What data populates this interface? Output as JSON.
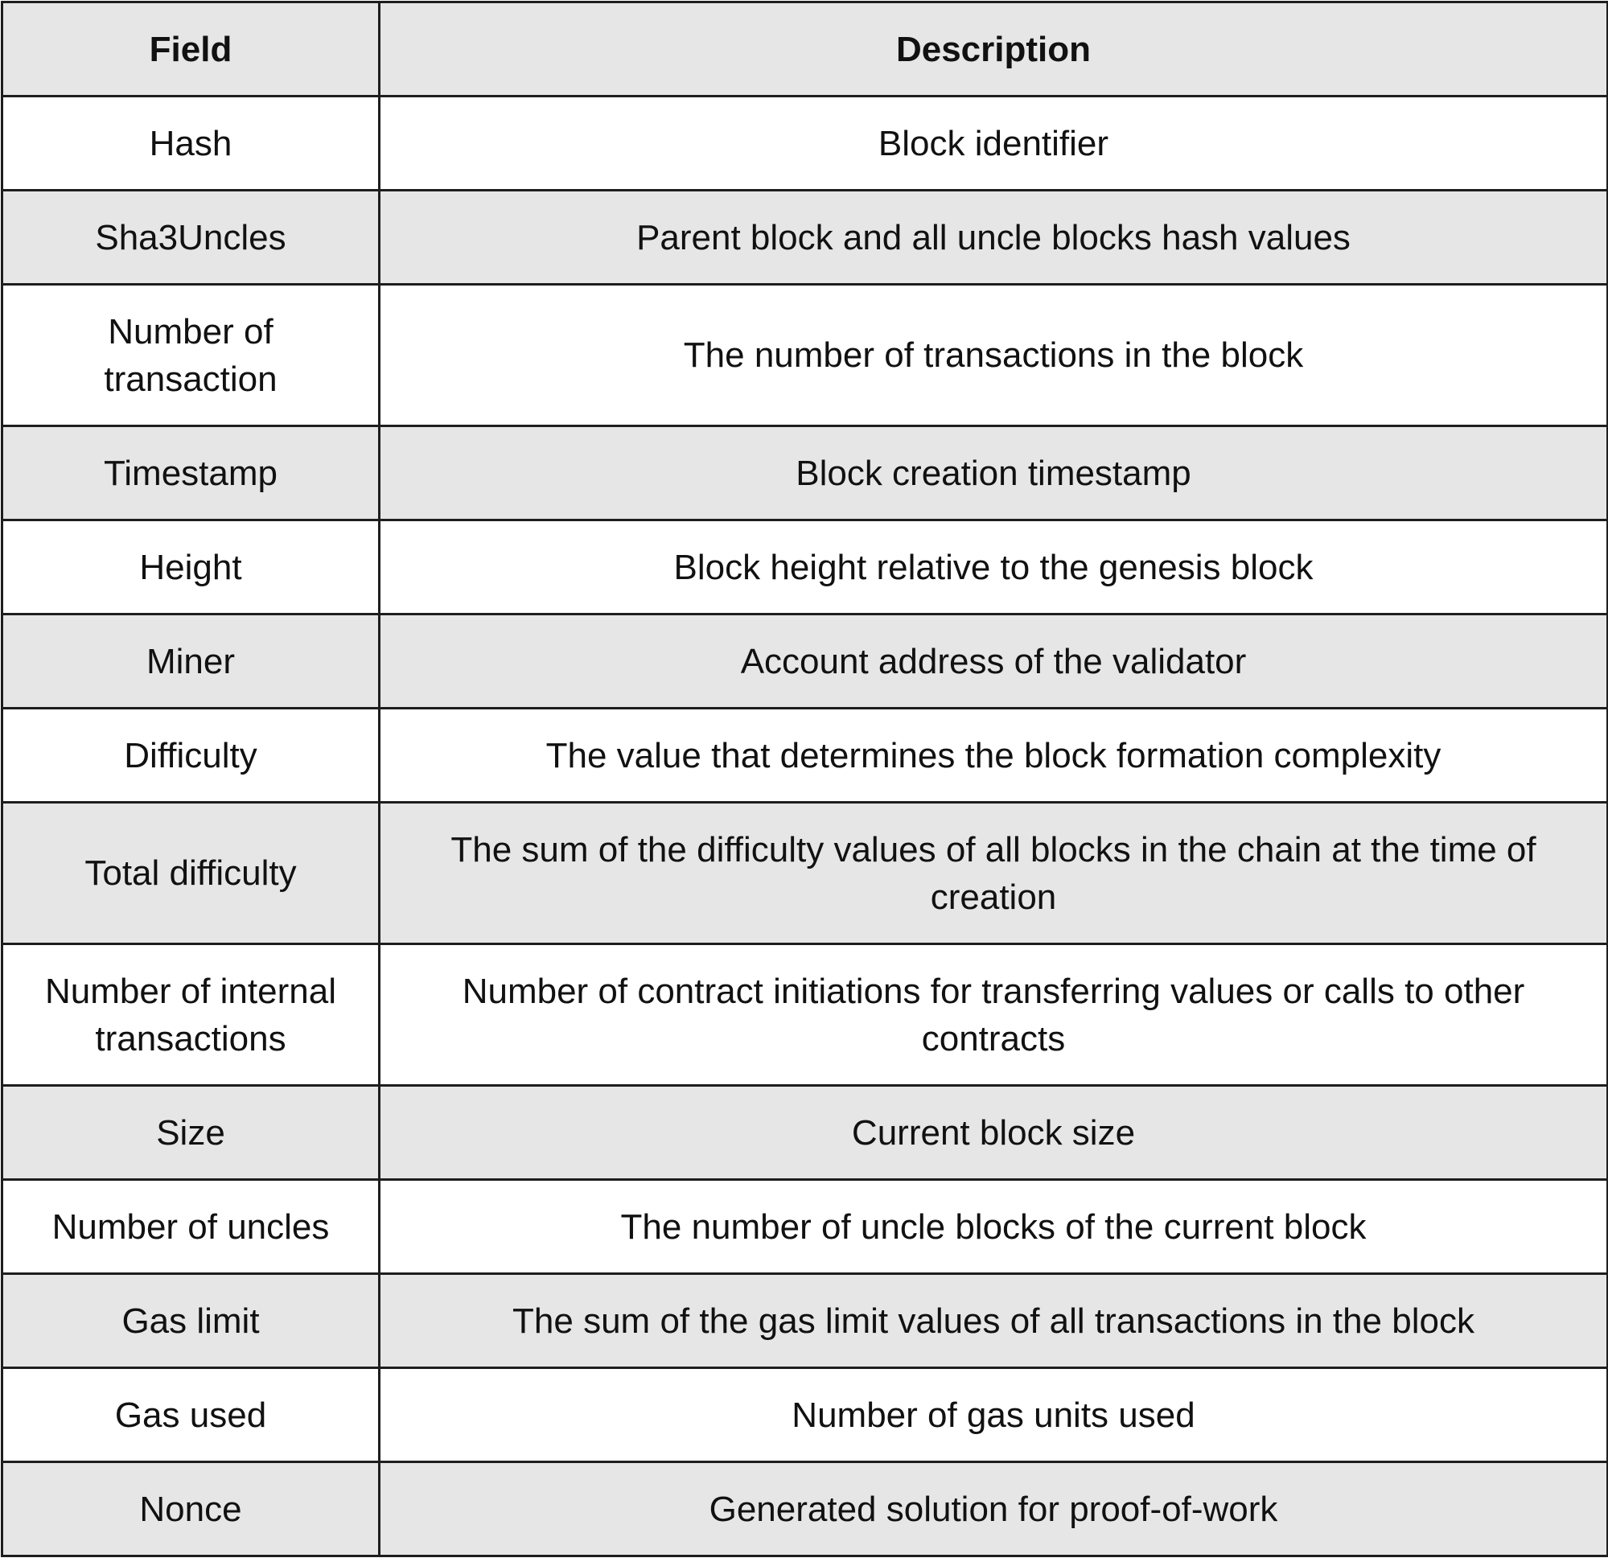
{
  "table": {
    "headers": [
      "Field",
      "Description"
    ],
    "rows": [
      {
        "field": "Hash",
        "description": "Block identifier"
      },
      {
        "field": "Sha3Uncles",
        "description": "Parent block and all uncle blocks hash values"
      },
      {
        "field": "Number of transaction",
        "description": "The number of transactions in the block"
      },
      {
        "field": "Timestamp",
        "description": "Block creation timestamp"
      },
      {
        "field": "Height",
        "description": "Block height relative to the genesis block"
      },
      {
        "field": "Miner",
        "description": "Account address of the validator"
      },
      {
        "field": "Difficulty",
        "description": "The value that determines the block formation complexity"
      },
      {
        "field": "Total difficulty",
        "description": "The sum of the difficulty values of all blocks in the chain at the time of creation"
      },
      {
        "field": "Number of internal transactions",
        "description": "Number of contract initiations for transferring values or calls to other contracts"
      },
      {
        "field": "Size",
        "description": "Current block size"
      },
      {
        "field": "Number of uncles",
        "description": "The number of uncle blocks of the current block"
      },
      {
        "field": "Gas limit",
        "description": "The sum of the gas limit values of all transactions in the block"
      },
      {
        "field": "Gas used",
        "description": "Number of gas units used"
      },
      {
        "field": "Nonce",
        "description": "Generated solution for proof-of-work"
      }
    ]
  }
}
